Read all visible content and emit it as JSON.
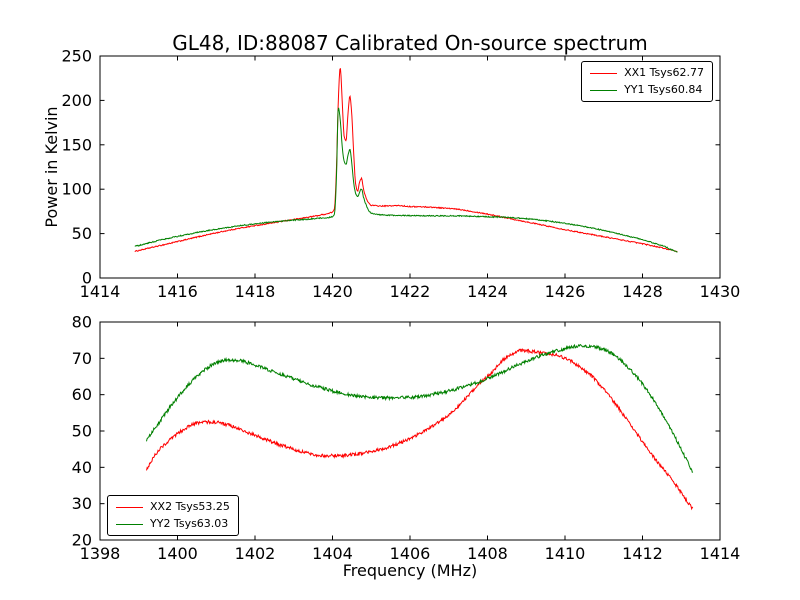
{
  "figure": {
    "background": "#ffffff"
  },
  "chart_data": [
    {
      "type": "line",
      "title": "GL48, ID:88087 Calibrated On-source spectrum",
      "xlabel": "",
      "ylabel": "Power in Kelvin",
      "xlim": [
        1414,
        1430
      ],
      "ylim": [
        0,
        250
      ],
      "xticks": [
        1414,
        1416,
        1418,
        1420,
        1422,
        1424,
        1426,
        1428,
        1430
      ],
      "yticks": [
        0,
        50,
        100,
        150,
        200,
        250
      ],
      "grid": false,
      "legend_position": "upper right",
      "series": [
        {
          "name": "XX1 Tsys62.77",
          "color": "#ff0000",
          "noise": 0.6,
          "points": [
            [
              1414.9,
              30
            ],
            [
              1415.3,
              34
            ],
            [
              1415.8,
              39
            ],
            [
              1416.3,
              44
            ],
            [
              1416.8,
              49
            ],
            [
              1417.3,
              53.5
            ],
            [
              1417.8,
              57.5
            ],
            [
              1418.3,
              61
            ],
            [
              1418.8,
              64.5
            ],
            [
              1419.3,
              68
            ],
            [
              1419.7,
              71
            ],
            [
              1420.0,
              74.5
            ],
            [
              1420.05,
              78
            ],
            [
              1420.1,
              120
            ],
            [
              1420.15,
              200
            ],
            [
              1420.2,
              237
            ],
            [
              1420.25,
              200
            ],
            [
              1420.3,
              160
            ],
            [
              1420.35,
              155
            ],
            [
              1420.4,
              185
            ],
            [
              1420.45,
              205
            ],
            [
              1420.5,
              182
            ],
            [
              1420.55,
              138
            ],
            [
              1420.6,
              105
            ],
            [
              1420.65,
              98
            ],
            [
              1420.7,
              108
            ],
            [
              1420.75,
              112
            ],
            [
              1420.8,
              100
            ],
            [
              1420.9,
              87
            ],
            [
              1421.0,
              82
            ],
            [
              1421.3,
              81
            ],
            [
              1421.7,
              81.5
            ],
            [
              1422.0,
              80.5
            ],
            [
              1422.4,
              80
            ],
            [
              1422.8,
              79
            ],
            [
              1423.2,
              77.5
            ],
            [
              1423.6,
              75
            ],
            [
              1424.0,
              72
            ],
            [
              1424.4,
              68.5
            ],
            [
              1424.8,
              65
            ],
            [
              1425.2,
              61.5
            ],
            [
              1425.6,
              58
            ],
            [
              1426.0,
              54.5
            ],
            [
              1426.5,
              50.5
            ],
            [
              1427.0,
              46.5
            ],
            [
              1427.5,
              42.5
            ],
            [
              1428.0,
              38.5
            ],
            [
              1428.5,
              34
            ],
            [
              1428.9,
              29.5
            ]
          ]
        },
        {
          "name": "YY1 Tsys60.84",
          "color": "#008000",
          "noise": 0.6,
          "points": [
            [
              1414.9,
              35.5
            ],
            [
              1415.3,
              40
            ],
            [
              1415.8,
              45
            ],
            [
              1416.3,
              49.5
            ],
            [
              1416.8,
              53.5
            ],
            [
              1417.3,
              57
            ],
            [
              1417.8,
              60
            ],
            [
              1418.3,
              62.5
            ],
            [
              1418.8,
              64.5
            ],
            [
              1419.3,
              66
            ],
            [
              1419.7,
              67.5
            ],
            [
              1420.0,
              69
            ],
            [
              1420.05,
              72
            ],
            [
              1420.1,
              110
            ],
            [
              1420.15,
              192
            ],
            [
              1420.2,
              178
            ],
            [
              1420.25,
              148
            ],
            [
              1420.3,
              132
            ],
            [
              1420.35,
              128
            ],
            [
              1420.4,
              138
            ],
            [
              1420.45,
              145
            ],
            [
              1420.5,
              128
            ],
            [
              1420.55,
              106
            ],
            [
              1420.6,
              95
            ],
            [
              1420.65,
              92
            ],
            [
              1420.7,
              97
            ],
            [
              1420.75,
              100
            ],
            [
              1420.8,
              91
            ],
            [
              1420.9,
              79
            ],
            [
              1421.0,
              73
            ],
            [
              1421.3,
              71
            ],
            [
              1421.7,
              70.5
            ],
            [
              1422.0,
              70.2
            ],
            [
              1422.4,
              70
            ],
            [
              1422.8,
              70
            ],
            [
              1423.2,
              70
            ],
            [
              1423.6,
              69.5
            ],
            [
              1424.0,
              69
            ],
            [
              1424.4,
              68.5
            ],
            [
              1424.8,
              67.5
            ],
            [
              1425.2,
              66
            ],
            [
              1425.6,
              64
            ],
            [
              1426.0,
              61.5
            ],
            [
              1426.5,
              58
            ],
            [
              1427.0,
              53.5
            ],
            [
              1427.5,
              48.5
            ],
            [
              1428.0,
              43
            ],
            [
              1428.5,
              36.5
            ],
            [
              1428.9,
              29
            ]
          ]
        }
      ]
    },
    {
      "type": "line",
      "title": "",
      "xlabel": "Frequency (MHz)",
      "ylabel": "",
      "xlim": [
        1398,
        1414
      ],
      "ylim": [
        20,
        80
      ],
      "xticks": [
        1398,
        1400,
        1402,
        1404,
        1406,
        1408,
        1410,
        1412,
        1414
      ],
      "yticks": [
        20,
        30,
        40,
        50,
        60,
        70,
        80
      ],
      "grid": false,
      "legend_position": "lower left",
      "series": [
        {
          "name": "XX2 Tsys53.25",
          "color": "#ff0000",
          "noise": 0.45,
          "points": [
            [
              1399.2,
              39.5
            ],
            [
              1399.5,
              44.5
            ],
            [
              1399.8,
              47.5
            ],
            [
              1400.1,
              50
            ],
            [
              1400.4,
              51.8
            ],
            [
              1400.7,
              52.5
            ],
            [
              1401.0,
              52.4
            ],
            [
              1401.4,
              51.3
            ],
            [
              1401.8,
              49.6
            ],
            [
              1402.2,
              48
            ],
            [
              1402.6,
              46.3
            ],
            [
              1403.0,
              45
            ],
            [
              1403.4,
              43.8
            ],
            [
              1403.8,
              43.2
            ],
            [
              1404.2,
              43.2
            ],
            [
              1404.6,
              43.6
            ],
            [
              1405.0,
              44.3
            ],
            [
              1405.4,
              45.4
            ],
            [
              1405.8,
              47
            ],
            [
              1406.2,
              49
            ],
            [
              1406.6,
              51.5
            ],
            [
              1407.0,
              54.5
            ],
            [
              1407.4,
              58.5
            ],
            [
              1407.8,
              63
            ],
            [
              1408.1,
              66
            ],
            [
              1408.4,
              69.5
            ],
            [
              1408.6,
              71
            ],
            [
              1408.9,
              72.2
            ],
            [
              1409.2,
              71.8
            ],
            [
              1409.5,
              71.2
            ],
            [
              1409.8,
              70.8
            ],
            [
              1410.1,
              69.5
            ],
            [
              1410.4,
              67.5
            ],
            [
              1410.7,
              65
            ],
            [
              1411.0,
              61.5
            ],
            [
              1411.3,
              57.5
            ],
            [
              1411.6,
              53
            ],
            [
              1411.9,
              48.5
            ],
            [
              1412.2,
              44
            ],
            [
              1412.5,
              40
            ],
            [
              1412.8,
              36
            ],
            [
              1413.1,
              31.5
            ],
            [
              1413.3,
              28.5
            ]
          ]
        },
        {
          "name": "YY2 Tsys63.03",
          "color": "#008000",
          "noise": 0.45,
          "points": [
            [
              1399.2,
              47.5
            ],
            [
              1399.5,
              52
            ],
            [
              1399.8,
              56.5
            ],
            [
              1400.1,
              60.5
            ],
            [
              1400.4,
              64
            ],
            [
              1400.7,
              66.8
            ],
            [
              1401.0,
              68.8
            ],
            [
              1401.3,
              69.6
            ],
            [
              1401.6,
              69.4
            ],
            [
              1401.9,
              68.5
            ],
            [
              1402.3,
              67
            ],
            [
              1402.7,
              65.5
            ],
            [
              1403.1,
              64
            ],
            [
              1403.5,
              62.5
            ],
            [
              1403.9,
              61.3
            ],
            [
              1404.3,
              60.3
            ],
            [
              1404.7,
              59.6
            ],
            [
              1405.1,
              59.2
            ],
            [
              1405.5,
              59.1
            ],
            [
              1405.9,
              59.2
            ],
            [
              1406.3,
              59.6
            ],
            [
              1406.7,
              60.3
            ],
            [
              1407.1,
              61.3
            ],
            [
              1407.5,
              62.5
            ],
            [
              1407.9,
              64
            ],
            [
              1408.3,
              65.8
            ],
            [
              1408.7,
              67.8
            ],
            [
              1409.1,
              69.6
            ],
            [
              1409.5,
              71.2
            ],
            [
              1409.9,
              72.4
            ],
            [
              1410.3,
              73.3
            ],
            [
              1410.6,
              73.4
            ],
            [
              1410.9,
              72.8
            ],
            [
              1411.2,
              71.4
            ],
            [
              1411.5,
              68.8
            ],
            [
              1411.8,
              65.5
            ],
            [
              1412.1,
              61.5
            ],
            [
              1412.4,
              56.5
            ],
            [
              1412.7,
              51
            ],
            [
              1413.0,
              45
            ],
            [
              1413.3,
              38.5
            ]
          ]
        }
      ]
    }
  ]
}
